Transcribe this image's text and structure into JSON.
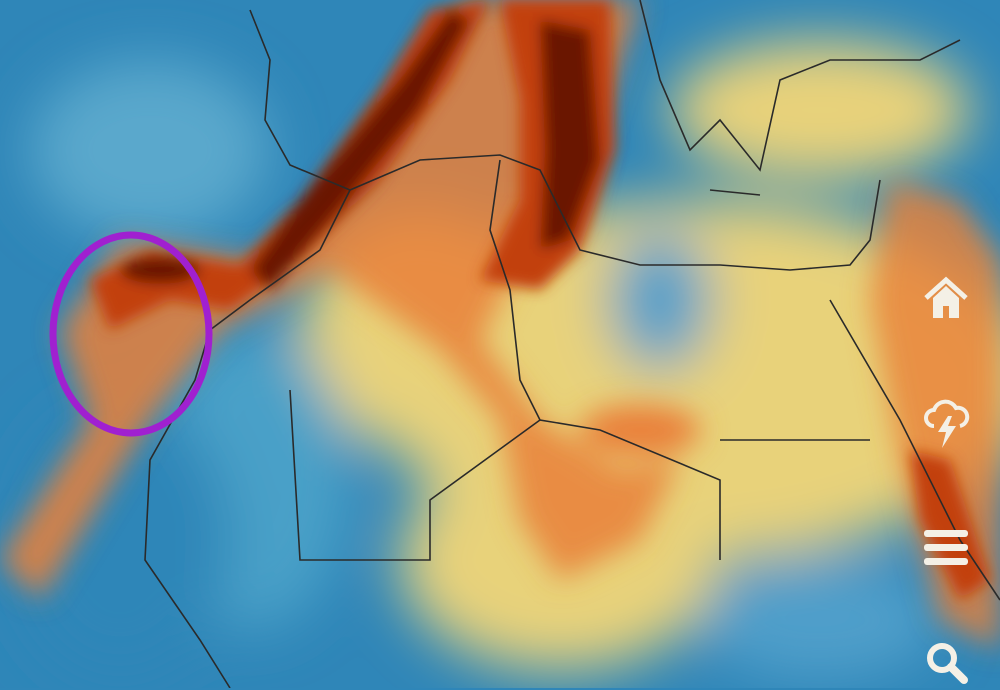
{
  "map": {
    "layer_colors": {
      "low": "#2f86b8",
      "mid": "#7fc2cf",
      "yellow": "#e8d27a",
      "orange": "#e9803a",
      "red": "#c2410f",
      "dark": "#5a0e05"
    },
    "annotation": {
      "shape": "circle",
      "color": "#a020d0"
    },
    "coastline_color": "#2a2a2a"
  },
  "controls": [
    {
      "icon": "home-icon"
    },
    {
      "icon": "thunderstorm-icon"
    },
    {
      "icon": "menu-icon"
    },
    {
      "icon": "search-icon"
    }
  ],
  "icon_color": "#f4f0e6"
}
